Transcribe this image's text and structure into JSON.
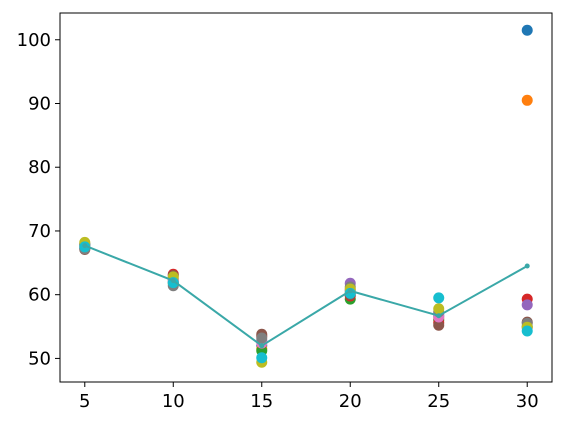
{
  "chart_data": {
    "type": "scatter",
    "title": "",
    "xlabel": "",
    "ylabel": "",
    "xlim": [
      3.6,
      31.4
    ],
    "ylim": [
      46.3,
      104.2
    ],
    "x_ticks": [
      5,
      10,
      15,
      20,
      25,
      30
    ],
    "x_tick_labels": [
      "5",
      "10",
      "15",
      "20",
      "25",
      "30"
    ],
    "y_ticks": [
      50,
      60,
      70,
      80,
      90,
      100
    ],
    "y_tick_labels": [
      "50",
      "60",
      "70",
      "80",
      "90",
      "100"
    ],
    "grid": false,
    "legend": "none",
    "x": [
      5,
      10,
      15,
      20,
      25,
      30
    ],
    "series": [
      {
        "color": "#1f77b4",
        "values": [
          67.8,
          62.0,
          52.0,
          60.6,
          56.7,
          101.5
        ]
      },
      {
        "color": "#ff7f0e",
        "values": [
          67.6,
          62.3,
          51.5,
          60.3,
          56.3,
          90.5
        ]
      },
      {
        "color": "#2ca02c",
        "values": [
          67.9,
          61.8,
          51.2,
          59.3,
          56.0,
          55.0
        ]
      },
      {
        "color": "#d62728",
        "values": [
          67.3,
          63.2,
          53.5,
          59.8,
          55.6,
          59.3
        ]
      },
      {
        "color": "#9467bd",
        "values": [
          68.0,
          62.5,
          52.8,
          61.8,
          57.0,
          58.4
        ]
      },
      {
        "color": "#8c564b",
        "values": [
          67.1,
          63.0,
          53.8,
          60.0,
          55.2,
          55.7
        ]
      },
      {
        "color": "#e377c2",
        "values": [
          67.5,
          62.1,
          52.4,
          60.8,
          56.5,
          54.8
        ]
      },
      {
        "color": "#7f7f7f",
        "values": [
          67.2,
          61.4,
          53.2,
          61.2,
          57.3,
          55.5
        ]
      },
      {
        "color": "#bcbd22",
        "values": [
          68.2,
          62.8,
          49.4,
          60.9,
          57.8,
          54.9
        ]
      },
      {
        "color": "#17becf",
        "values": [
          67.5,
          61.9,
          50.1,
          60.2,
          59.5,
          54.3
        ]
      }
    ],
    "mean_line": {
      "color": "#3aa8a8",
      "values": [
        67.7,
        62.2,
        52.0,
        60.6,
        56.7,
        64.5
      ]
    }
  }
}
